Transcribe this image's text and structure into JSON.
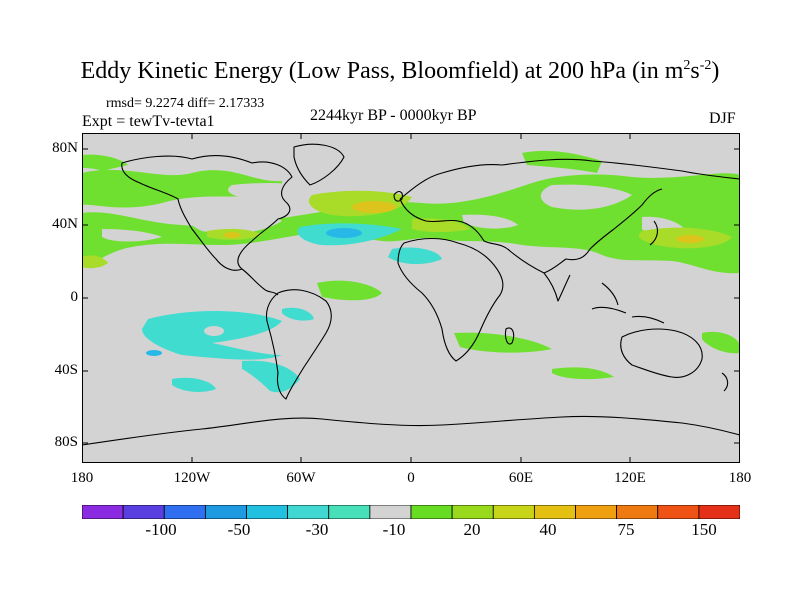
{
  "title": {
    "main": "Eddy Kinetic Energy (Low Pass, Bloomfield) at 200 hPa (in m",
    "sup1": "2",
    "mid": "s",
    "sup2": "-2",
    "end": ")"
  },
  "stats": "rmsd= 9.2274 diff= 2.17333",
  "period": "2244kyr BP - 0000kyr BP",
  "experiment": "Expt = tewTv-tevta1",
  "season": "DJF",
  "lat_labels": [
    "80N",
    "40N",
    "0",
    "40S",
    "80S"
  ],
  "lon_labels": [
    "180",
    "120W",
    "60W",
    "0",
    "60E",
    "120E",
    "180"
  ],
  "colorbar": {
    "labels": [
      "-100",
      "-50",
      "-30",
      "-10",
      "20",
      "40",
      "75",
      "150"
    ],
    "colors": [
      "#8a2be2",
      "#5a3fe0",
      "#2f6ff0",
      "#1e9ae0",
      "#22c0e0",
      "#40d8d0",
      "#48e0b8",
      "#d3d3d3",
      "#66dd22",
      "#99d91c",
      "#c8d418",
      "#e4c013",
      "#eea010",
      "#f07a12",
      "#ee5214",
      "#e43018"
    ]
  },
  "map_colors": {
    "background": "#d3d3d3",
    "green": "#70e030",
    "yellowgreen": "#a8dc28",
    "yellow": "#dcc41c",
    "cyan": "#40dcd0",
    "blue": "#28b8e8"
  }
}
